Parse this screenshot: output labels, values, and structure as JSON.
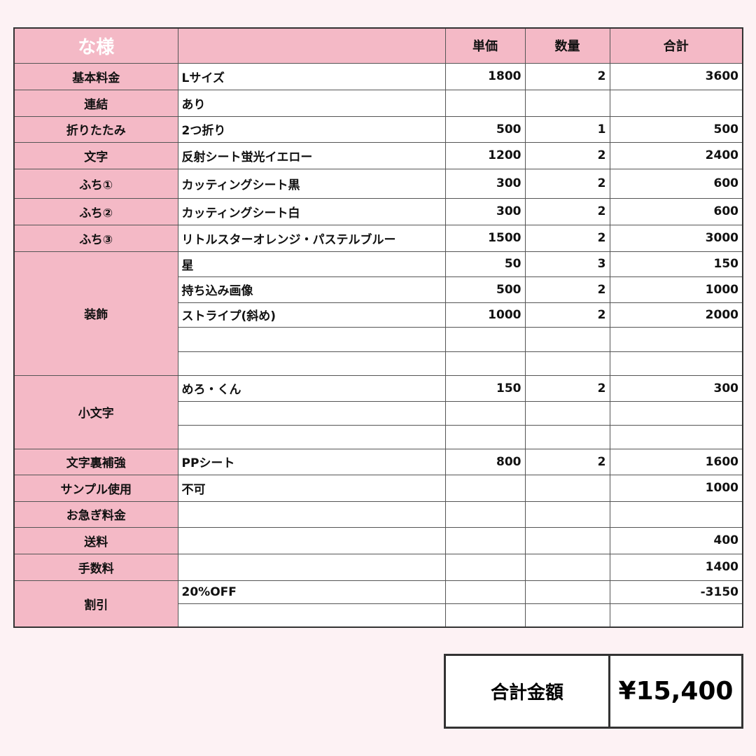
{
  "header": {
    "customer": "な様",
    "col_price": "単価",
    "col_qty": "数量",
    "col_total": "合計"
  },
  "groups": [
    {
      "label": "基本料金",
      "rows": [
        {
          "desc": "Lサイズ",
          "price": "1800",
          "qty": "2",
          "total": "3600"
        }
      ]
    },
    {
      "label": "連結",
      "rows": [
        {
          "desc": "あり",
          "price": "",
          "qty": "",
          "total": ""
        }
      ]
    },
    {
      "label": "折りたたみ",
      "rows": [
        {
          "desc": "2つ折り",
          "price": "500",
          "qty": "1",
          "total": "500"
        }
      ]
    },
    {
      "label": "文字",
      "rows": [
        {
          "desc": "反射シート蛍光イエロー",
          "price": "1200",
          "qty": "2",
          "total": "2400"
        }
      ]
    },
    {
      "label": "ふち①",
      "rows": [
        {
          "desc": "カッティングシート黒",
          "price": "300",
          "qty": "2",
          "total": "600"
        }
      ]
    },
    {
      "label": "ふち②",
      "rows": [
        {
          "desc": "カッティングシート白",
          "price": "300",
          "qty": "2",
          "total": "600"
        }
      ]
    },
    {
      "label": "ふち③",
      "rows": [
        {
          "desc": "リトルスターオレンジ・パステルブルー",
          "price": "1500",
          "qty": "2",
          "total": "3000"
        }
      ]
    },
    {
      "label": "装飾",
      "rows": [
        {
          "desc": "星",
          "price": "50",
          "qty": "3",
          "total": "150"
        },
        {
          "desc": "持ち込み画像",
          "price": "500",
          "qty": "2",
          "total": "1000"
        },
        {
          "desc": "ストライプ(斜め)",
          "price": "1000",
          "qty": "2",
          "total": "2000"
        },
        {
          "desc": "",
          "price": "",
          "qty": "",
          "total": ""
        },
        {
          "desc": "",
          "price": "",
          "qty": "",
          "total": ""
        }
      ]
    },
    {
      "label": "小文字",
      "rows": [
        {
          "desc": "めろ・くん",
          "price": "150",
          "qty": "2",
          "total": "300"
        },
        {
          "desc": "",
          "price": "",
          "qty": "",
          "total": ""
        },
        {
          "desc": "",
          "price": "",
          "qty": "",
          "total": ""
        }
      ]
    },
    {
      "label": "文字裏補強",
      "rows": [
        {
          "desc": "PPシート",
          "price": "800",
          "qty": "2",
          "total": "1600"
        }
      ]
    },
    {
      "label": "サンプル使用",
      "rows": [
        {
          "desc": "不可",
          "price": "",
          "qty": "",
          "total": "1000"
        }
      ]
    },
    {
      "label": "お急ぎ料金",
      "rows": [
        {
          "desc": "",
          "price": "",
          "qty": "",
          "total": ""
        }
      ]
    },
    {
      "label": "送料",
      "rows": [
        {
          "desc": "",
          "price": "",
          "qty": "",
          "total": "400"
        }
      ]
    },
    {
      "label": "手数料",
      "rows": [
        {
          "desc": "",
          "price": "",
          "qty": "",
          "total": "1400"
        }
      ]
    },
    {
      "label": "割引",
      "rows": [
        {
          "desc": "20%OFF",
          "price": "",
          "qty": "",
          "total": "-3150"
        },
        {
          "desc": "",
          "price": "",
          "qty": "",
          "total": ""
        }
      ]
    }
  ],
  "summary": {
    "label": "合計金額",
    "value": "¥15,400"
  },
  "colors": {
    "header_bg": "#f4b9c6",
    "negative": "#ff4a4a",
    "page_bg": "#fdf2f4"
  }
}
